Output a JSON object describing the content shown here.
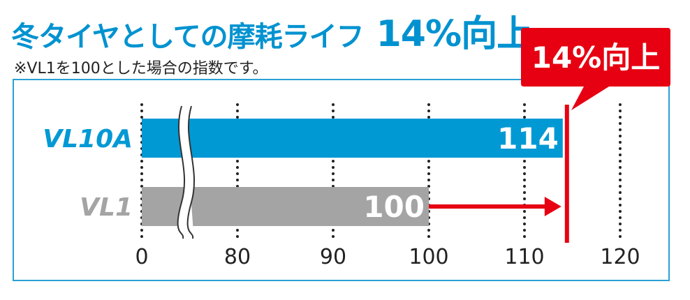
{
  "title": {
    "main": "冬タイヤとしての摩耗ライフ",
    "highlight": "14%向上"
  },
  "note": "※VL1を100とした場合の指数です。",
  "callout": "14%向上",
  "colors": {
    "title": "#0092d0",
    "bar_vl10a": "#0099d4",
    "bar_vl1": "#a4a4a4",
    "accent_red": "#e60012",
    "frame": "#2aa0d6"
  },
  "chart_data": {
    "type": "bar",
    "orientation": "horizontal",
    "categories": [
      "VL10A",
      "VL1"
    ],
    "values": [
      114,
      100
    ],
    "value_labels": [
      "114",
      "100"
    ],
    "x_ticks": [
      "0",
      "80",
      "90",
      "100",
      "110",
      "120"
    ],
    "axis_break": true,
    "xlim": [
      70,
      120
    ],
    "grid": "dotted vertical",
    "annotation": "14%向上"
  }
}
